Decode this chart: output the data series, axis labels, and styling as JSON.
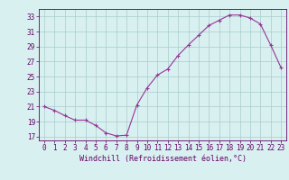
{
  "x": [
    0,
    1,
    2,
    3,
    4,
    5,
    6,
    7,
    8,
    9,
    10,
    11,
    12,
    13,
    14,
    15,
    16,
    17,
    18,
    19,
    20,
    21,
    22,
    23
  ],
  "y": [
    21.0,
    20.5,
    19.8,
    19.2,
    19.2,
    18.5,
    17.5,
    17.1,
    17.2,
    21.2,
    23.5,
    25.2,
    26.0,
    27.8,
    29.2,
    30.5,
    31.8,
    32.5,
    33.2,
    33.2,
    32.8,
    32.0,
    29.2,
    26.2
  ],
  "title": "",
  "xlabel": "Windchill (Refroidissement éolien,°C)",
  "ylabel": "",
  "ylim": [
    16.5,
    34.0
  ],
  "xlim": [
    -0.5,
    23.5
  ],
  "yticks": [
    17,
    19,
    21,
    23,
    25,
    27,
    29,
    31,
    33
  ],
  "xtick_labels": [
    "0",
    "1",
    "2",
    "3",
    "4",
    "5",
    "6",
    "7",
    "8",
    "9",
    "10",
    "11",
    "12",
    "13",
    "14",
    "15",
    "16",
    "17",
    "18",
    "19",
    "20",
    "21",
    "22",
    "23"
  ],
  "line_color": "#993399",
  "marker_color": "#993399",
  "bg_color": "#d8f0f0",
  "grid_color": "#aacccc",
  "font_color": "#660066",
  "font_family": "monospace",
  "label_fontsize": 5.5,
  "tick_fontsize": 5.5,
  "xlabel_fontsize": 6.0
}
